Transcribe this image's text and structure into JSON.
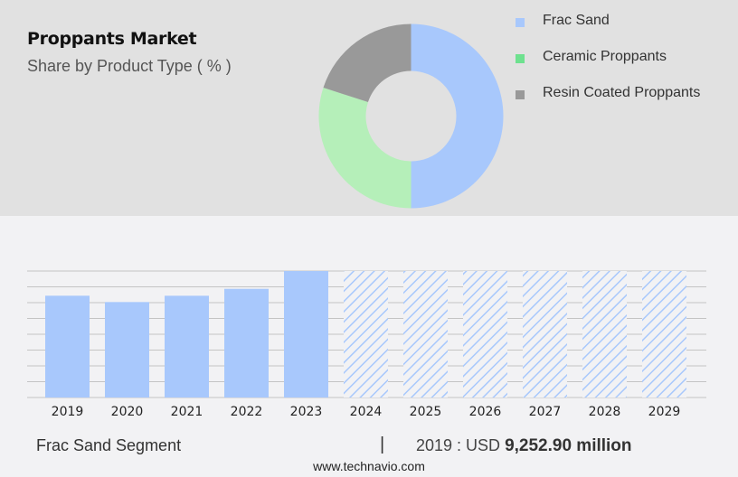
{
  "header": {
    "title": "Proppants Market",
    "subtitle": "Share by Product Type ( % )"
  },
  "legend": [
    {
      "label": "Frac Sand",
      "color": "#a8c8fc"
    },
    {
      "label": "Ceramic Proppants",
      "color": "#6ee18f"
    },
    {
      "label": "Resin Coated Proppants",
      "color": "#999999"
    }
  ],
  "footer": {
    "segment": "Frac Sand Segment",
    "separator": "|",
    "value_prefix": "2019 : USD ",
    "value": "9,252.90 million",
    "site": "www.technavio.com"
  },
  "chart_data": [
    {
      "type": "pie",
      "title": "Proppants Market",
      "subtitle": "Share by Product Type ( % )",
      "donut": true,
      "categories": [
        "Frac Sand",
        "Ceramic Proppants",
        "Resin Coated Proppants"
      ],
      "values": [
        50,
        30,
        20
      ],
      "colors": [
        "#a8c8fc",
        "#b5efb9",
        "#999999"
      ],
      "legend_position": "right"
    },
    {
      "type": "bar",
      "title": "Frac Sand Segment",
      "categories": [
        "2019",
        "2020",
        "2021",
        "2022",
        "2023",
        "2024",
        "2025",
        "2026",
        "2027",
        "2028",
        "2029"
      ],
      "values": [
        9252.9,
        8680,
        9250,
        9880,
        11500,
        null,
        null,
        null,
        null,
        null,
        null
      ],
      "forecast_years": [
        "2024",
        "2025",
        "2026",
        "2027",
        "2028",
        "2029"
      ],
      "annotation": "2019 : USD 9,252.90 million",
      "xlabel": "",
      "ylabel": "",
      "grid": true,
      "gridlines": 9,
      "color": "#a8c8fc"
    }
  ]
}
